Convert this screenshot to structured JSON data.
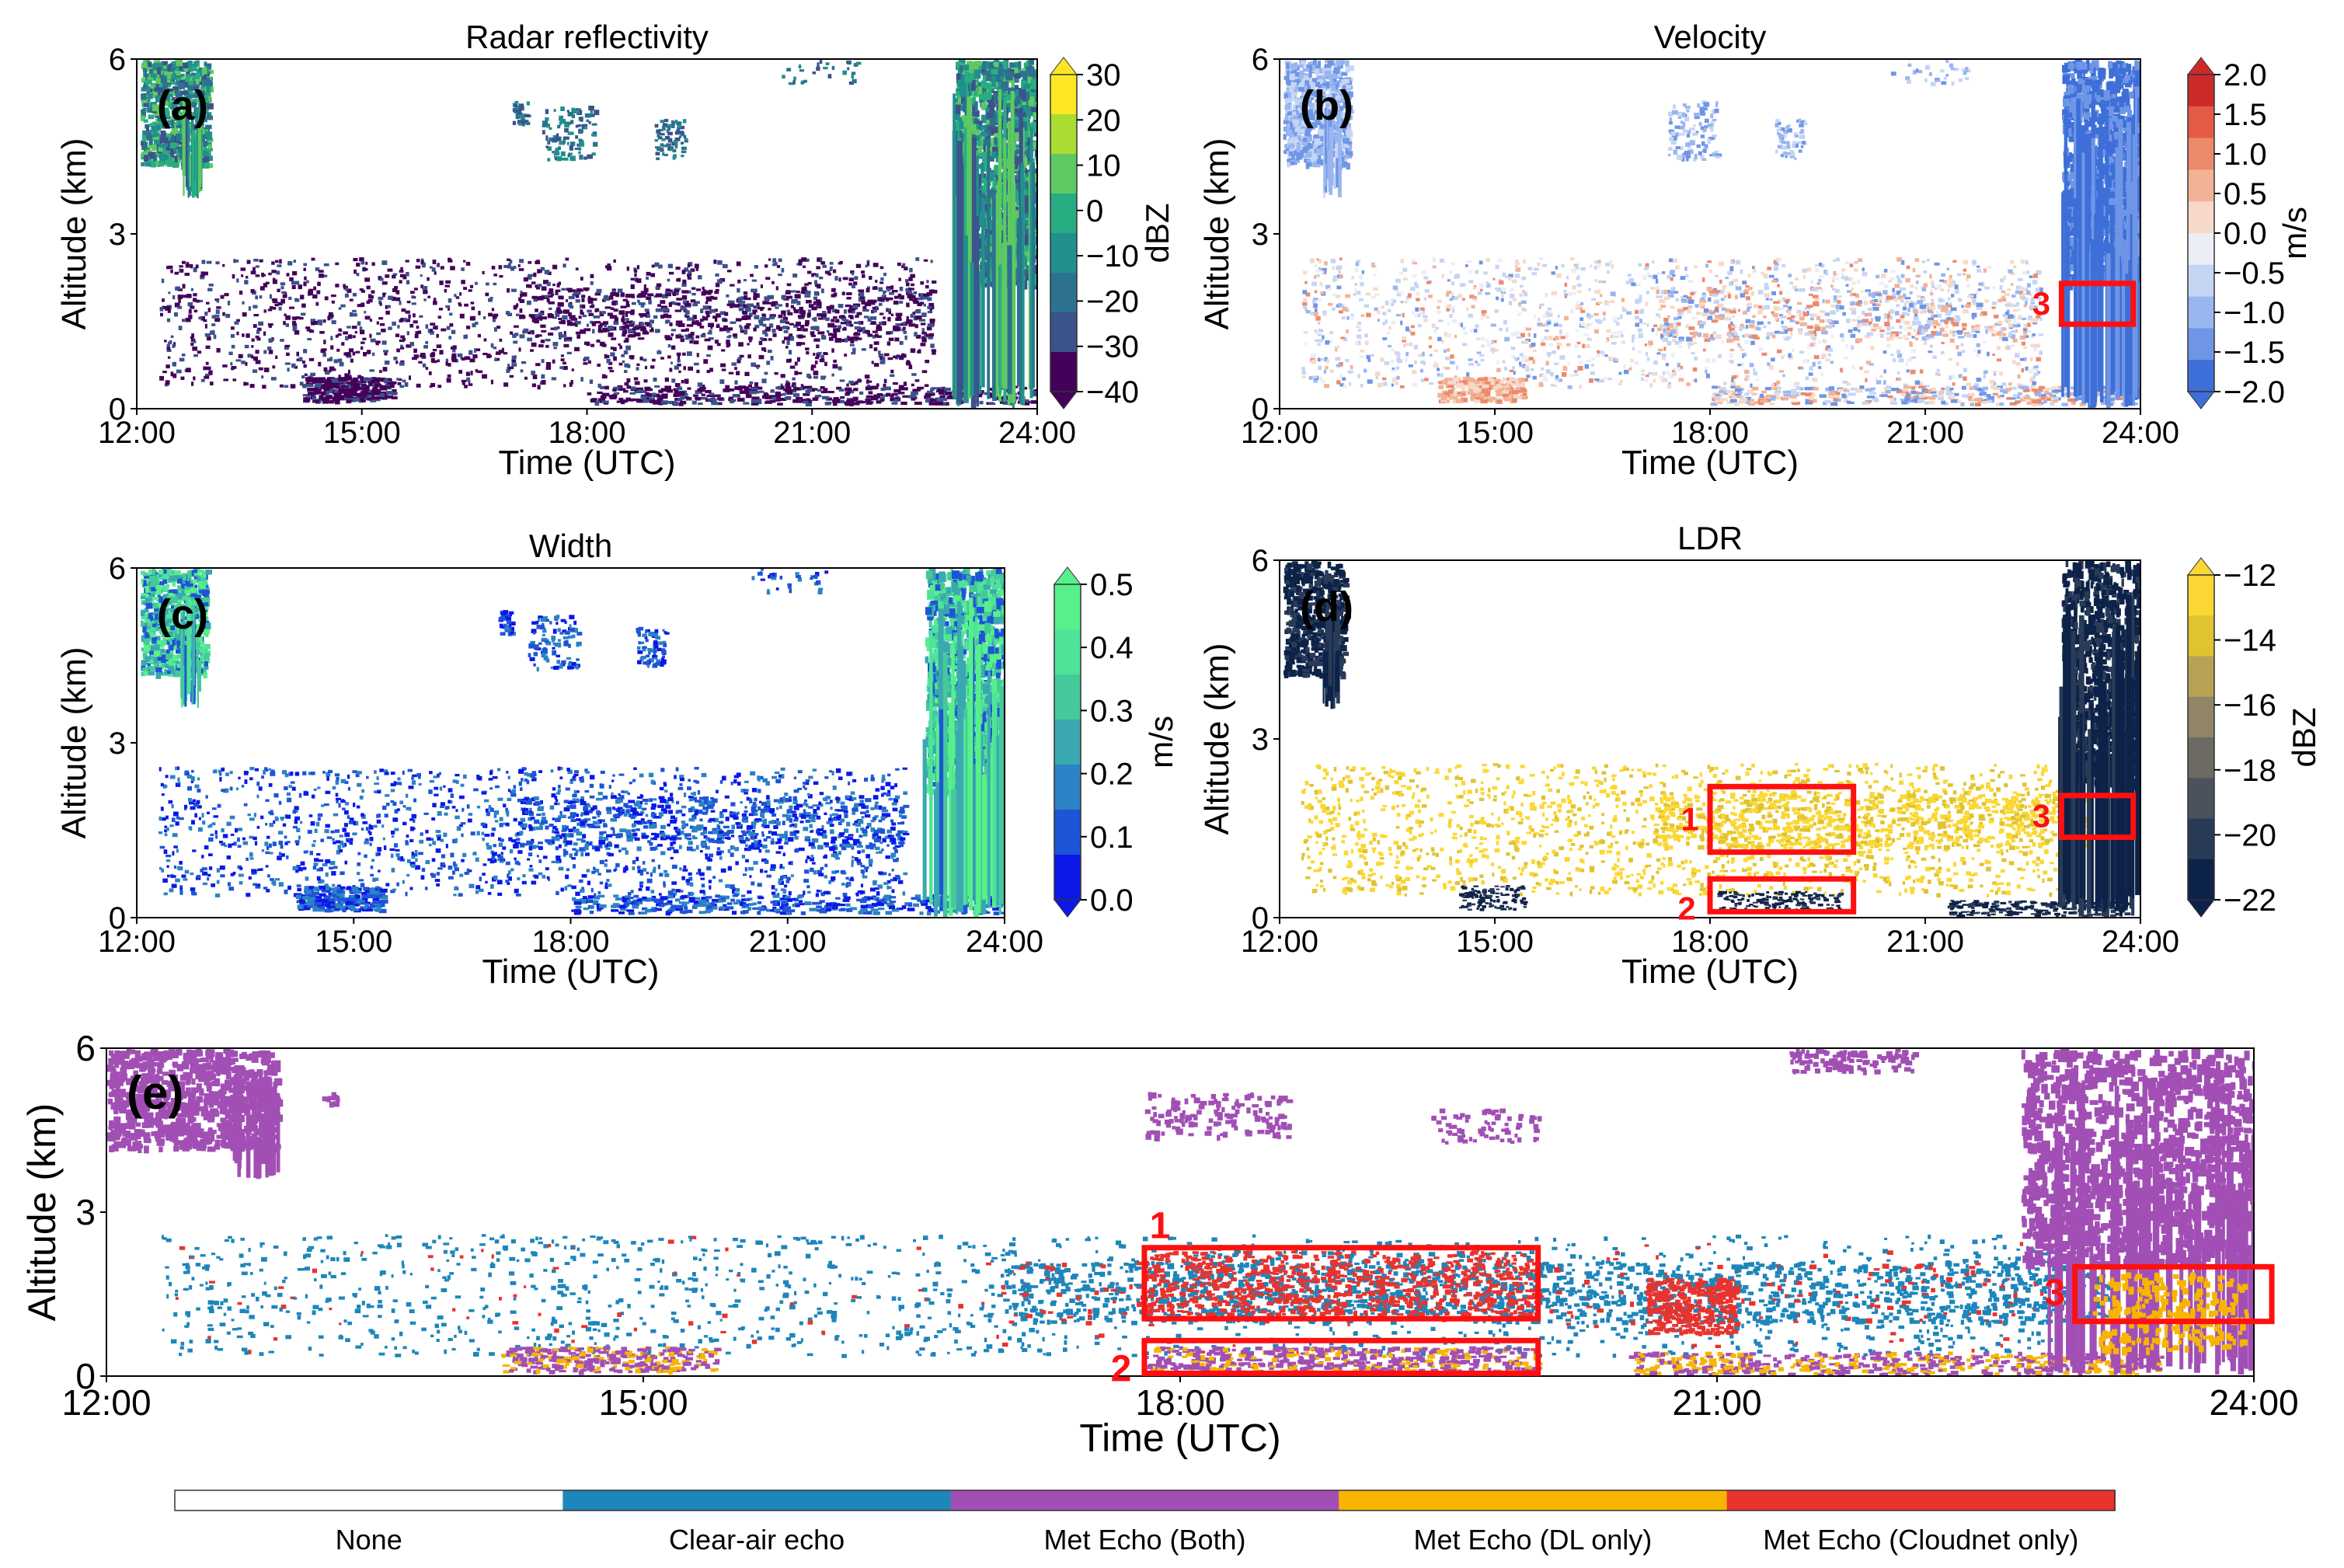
{
  "colors": {
    "reflectivity": [
      "#44015a",
      "#3b528b",
      "#2c728e",
      "#21908d",
      "#27ad81",
      "#5ec962",
      "#aadc32",
      "#fde725"
    ],
    "velocity": [
      "#3e6fd8",
      "#6f96e6",
      "#9ab6f0",
      "#c5d5f4",
      "#ebeef4",
      "#f6d9c8",
      "#f2b295",
      "#ec8a6b",
      "#e55a45",
      "#cc2a2a"
    ],
    "width": [
      "#0b18e8",
      "#1d55d6",
      "#2c82c4",
      "#3aa8b0",
      "#45c99a",
      "#4fe39a",
      "#57f08a"
    ],
    "ldr": [
      "#0d2248",
      "#293b57",
      "#4b525d",
      "#6d6a63",
      "#918566",
      "#b8a256",
      "#e0c330",
      "#fbd733"
    ],
    "classification": {
      "None": "#ffffff",
      "Clear-air echo": "#1d86bb",
      "Met Echo (Both)": "#a24fb5",
      "Met Echo (DL only)": "#f7b500",
      "Met Echo (Cloudnet only)": "#e8332e"
    },
    "box": "#ff1010"
  },
  "chart_data": [
    {
      "type": "heatmap",
      "panel_label": "(a)",
      "title": "Radar reflectivity",
      "xlabel": "Time (UTC)",
      "ylabel": "Altitude (km)",
      "xticks": [
        "12:00",
        "15:00",
        "18:00",
        "21:00",
        "24:00"
      ],
      "yticks": [
        "0",
        "3",
        "6"
      ],
      "xlim": [
        12,
        24
      ],
      "ylim": [
        0,
        6
      ],
      "colorbar": {
        "label": "dBZ",
        "ticks": [
          "30",
          "20",
          "10",
          "0",
          "−10",
          "−20",
          "−30",
          "−40"
        ],
        "range": [
          -40,
          30
        ]
      }
    },
    {
      "type": "heatmap",
      "panel_label": "(b)",
      "title": "Velocity",
      "xlabel": "Time (UTC)",
      "ylabel": "Altitude (km)",
      "xticks": [
        "12:00",
        "15:00",
        "18:00",
        "21:00",
        "24:00"
      ],
      "yticks": [
        "0",
        "3",
        "6"
      ],
      "xlim": [
        12,
        24
      ],
      "ylim": [
        0,
        6
      ],
      "colorbar": {
        "label": "m/s",
        "ticks": [
          "2.0",
          "1.5",
          "1.0",
          "0.5",
          "0.0",
          "−0.5",
          "−1.0",
          "−1.5",
          "−2.0"
        ],
        "range": [
          -2.0,
          2.0
        ]
      },
      "boxes": [
        {
          "label": "3",
          "t0": 22.9,
          "t1": 23.9,
          "h0": 1.45,
          "h1": 2.15
        }
      ]
    },
    {
      "type": "heatmap",
      "panel_label": "(c)",
      "title": "Width",
      "xlabel": "Time (UTC)",
      "ylabel": "Altitude (km)",
      "xticks": [
        "12:00",
        "15:00",
        "18:00",
        "21:00",
        "24:00"
      ],
      "yticks": [
        "0",
        "3",
        "6"
      ],
      "xlim": [
        12,
        24
      ],
      "ylim": [
        0,
        6
      ],
      "colorbar": {
        "label": "m/s",
        "ticks": [
          "0.5",
          "0.4",
          "0.3",
          "0.2",
          "0.1",
          "0.0"
        ],
        "range": [
          0.0,
          0.5
        ]
      }
    },
    {
      "type": "heatmap",
      "panel_label": "(d)",
      "title": "LDR",
      "xlabel": "Time (UTC)",
      "ylabel": "Altitude (km)",
      "xticks": [
        "12:00",
        "15:00",
        "18:00",
        "21:00",
        "24:00"
      ],
      "yticks": [
        "0",
        "3",
        "6"
      ],
      "xlim": [
        12,
        24
      ],
      "ylim": [
        0,
        6
      ],
      "colorbar": {
        "label": "dBZ",
        "ticks": [
          "−12",
          "−14",
          "−16",
          "−18",
          "−20",
          "−22"
        ],
        "range": [
          -22,
          -12
        ]
      },
      "boxes": [
        {
          "label": "1",
          "t0": 18.0,
          "t1": 20.0,
          "h0": 1.1,
          "h1": 2.2
        },
        {
          "label": "2",
          "t0": 18.0,
          "t1": 20.0,
          "h0": 0.1,
          "h1": 0.65
        },
        {
          "label": "3",
          "t0": 22.9,
          "t1": 23.9,
          "h0": 1.35,
          "h1": 2.05
        }
      ]
    },
    {
      "type": "heatmap",
      "panel_label": "(e)",
      "title": "",
      "xlabel": "Time (UTC)",
      "ylabel": "Altitude (km)",
      "xticks": [
        "12:00",
        "15:00",
        "18:00",
        "21:00",
        "24:00"
      ],
      "yticks": [
        "0",
        "3",
        "6"
      ],
      "xlim": [
        12,
        24
      ],
      "ylim": [
        0,
        6
      ],
      "legend": [
        "None",
        "Clear-air echo",
        "Met Echo (Both)",
        "Met Echo (DL only)",
        "Met Echo (Cloudnet only)"
      ],
      "boxes": [
        {
          "label": "1",
          "t0": 17.8,
          "t1": 20.0,
          "h0": 1.05,
          "h1": 2.35
        },
        {
          "label": "2",
          "t0": 17.8,
          "t1": 20.0,
          "h0": 0.05,
          "h1": 0.65
        },
        {
          "label": "3",
          "t0": 23.0,
          "t1": 24.1,
          "h0": 1.0,
          "h1": 2.0
        }
      ]
    }
  ]
}
